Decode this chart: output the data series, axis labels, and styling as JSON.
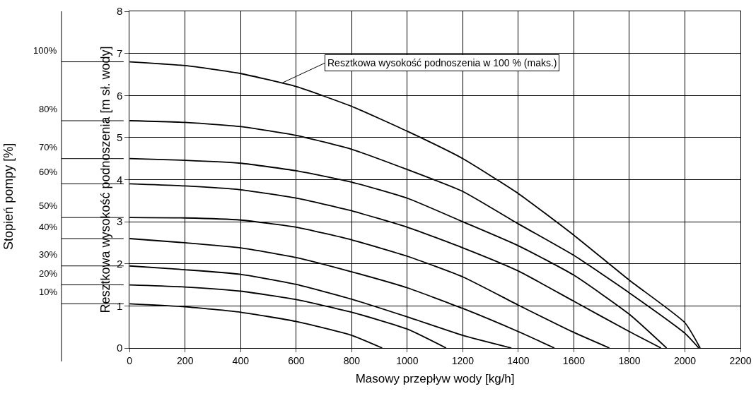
{
  "chart_data": {
    "type": "line",
    "xlabel": "Masowy przepływ wody [kg/h]",
    "ylabel": "Resztkowa wysokość podnoszenia [m sł. wody]",
    "legend_title": "Stopień pompy [%]",
    "xlim": [
      0,
      2200
    ],
    "xticks": [
      0,
      200,
      400,
      600,
      800,
      1000,
      1200,
      1400,
      1600,
      1800,
      2000,
      2200
    ],
    "ylim": [
      0,
      8
    ],
    "yticks": [
      0,
      1,
      2,
      3,
      4,
      5,
      6,
      7,
      8
    ],
    "grid": true,
    "legend": "left",
    "marker": "none",
    "line_style": "solid",
    "series": [
      {
        "name": "100%",
        "color": "#000000",
        "x": [
          0,
          200,
          400,
          600,
          800,
          1000,
          1200,
          1400,
          1600,
          1800,
          2000,
          2055
        ],
        "values": [
          6.8,
          6.71,
          6.52,
          6.21,
          5.74,
          5.15,
          4.5,
          3.67,
          2.68,
          1.61,
          0.6,
          0
        ]
      },
      {
        "name": "80%",
        "color": "#000000",
        "x": [
          0,
          200,
          400,
          600,
          800,
          1000,
          1200,
          1400,
          1600,
          1800,
          2000,
          2050
        ],
        "values": [
          5.4,
          5.36,
          5.26,
          5.05,
          4.72,
          4.24,
          3.72,
          2.95,
          2.2,
          1.31,
          0.35,
          0
        ]
      },
      {
        "name": "70%",
        "color": "#000000",
        "x": [
          0,
          200,
          400,
          600,
          800,
          1000,
          1200,
          1400,
          1600,
          1800,
          1934
        ],
        "values": [
          4.5,
          4.46,
          4.39,
          4.21,
          3.94,
          3.56,
          3.0,
          2.43,
          1.73,
          0.8,
          0
        ]
      },
      {
        "name": "60%",
        "color": "#000000",
        "x": [
          0,
          200,
          400,
          600,
          800,
          1000,
          1200,
          1400,
          1600,
          1800,
          1914
        ],
        "values": [
          3.9,
          3.85,
          3.76,
          3.56,
          3.26,
          2.87,
          2.38,
          1.83,
          1.11,
          0.39,
          0
        ]
      },
      {
        "name": "50%",
        "color": "#000000",
        "x": [
          0,
          200,
          400,
          600,
          800,
          1000,
          1200,
          1400,
          1600,
          1728
        ],
        "values": [
          3.1,
          3.09,
          3.04,
          2.87,
          2.57,
          2.18,
          1.69,
          1.02,
          0.37,
          0
        ]
      },
      {
        "name": "40%",
        "color": "#000000",
        "x": [
          0,
          200,
          400,
          600,
          800,
          1000,
          1200,
          1400,
          1530
        ],
        "values": [
          2.6,
          2.5,
          2.38,
          2.15,
          1.81,
          1.43,
          0.94,
          0.39,
          0
        ]
      },
      {
        "name": "30%",
        "color": "#000000",
        "x": [
          0,
          200,
          400,
          600,
          800,
          1000,
          1200,
          1375
        ],
        "values": [
          1.95,
          1.86,
          1.75,
          1.51,
          1.16,
          0.74,
          0.3,
          0
        ]
      },
      {
        "name": "20%",
        "color": "#000000",
        "x": [
          0,
          200,
          400,
          600,
          800,
          1000,
          1140
        ],
        "values": [
          1.5,
          1.45,
          1.35,
          1.15,
          0.85,
          0.45,
          0
        ]
      },
      {
        "name": "10%",
        "color": "#000000",
        "x": [
          0,
          200,
          400,
          600,
          800,
          910
        ],
        "values": [
          1.05,
          0.98,
          0.85,
          0.63,
          0.3,
          0
        ]
      }
    ],
    "annotations": [
      {
        "text": "Resztkowa wysokość podnoszenia w 100 % (maks.)",
        "x": 550,
        "y": 6.3
      }
    ]
  }
}
